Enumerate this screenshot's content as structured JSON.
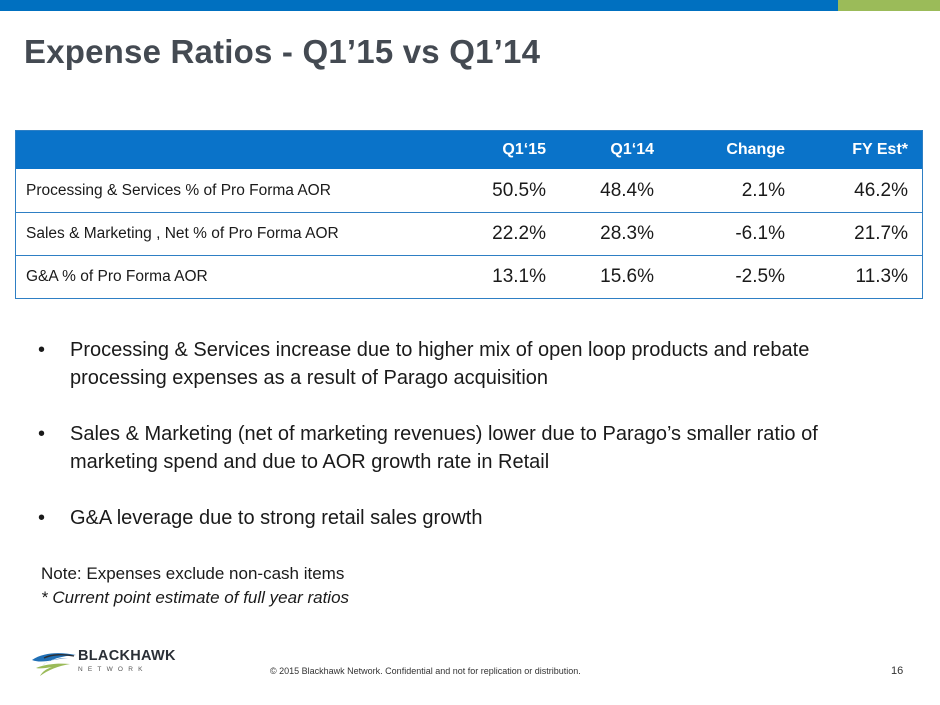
{
  "title": "Expense Ratios - Q1’15 vs Q1’14",
  "table": {
    "headers": [
      "",
      "Q1‘15",
      "Q1‘14",
      "Change",
      "FY Est*"
    ],
    "rows": [
      [
        "Processing & Services % of Pro Forma AOR",
        "50.5%",
        "48.4%",
        "2.1%",
        "46.2%"
      ],
      [
        "Sales & Marketing , Net % of Pro Forma AOR",
        "22.2%",
        "28.3%",
        "-6.1%",
        "21.7%"
      ],
      [
        "G&A % of Pro Forma AOR",
        "13.1%",
        "15.6%",
        "-2.5%",
        "11.3%"
      ]
    ]
  },
  "bullets": [
    "Processing & Services increase due to higher mix of open loop products and rebate processing expenses as a result of Parago acquisition",
    "Sales & Marketing (net of marketing revenues) lower due to Parago’s smaller ratio of marketing spend and due to AOR growth rate in Retail",
    "G&A leverage due to strong retail sales growth"
  ],
  "bullet_symbol": "•",
  "note": {
    "line1": "Note: Expenses exclude non-cash items",
    "line2": "*  Current point estimate of  full year ratios"
  },
  "logo": {
    "name": "BLACKHAWK",
    "sub": "NETWORK"
  },
  "footer": "© 2015 Blackhawk Network. Confidential and not for replication or distribution.",
  "page_number": "16",
  "colors": {
    "header_blue": "#0a73c9",
    "top_bar_blue": "#0070c0",
    "top_bar_green": "#9bbb59"
  }
}
